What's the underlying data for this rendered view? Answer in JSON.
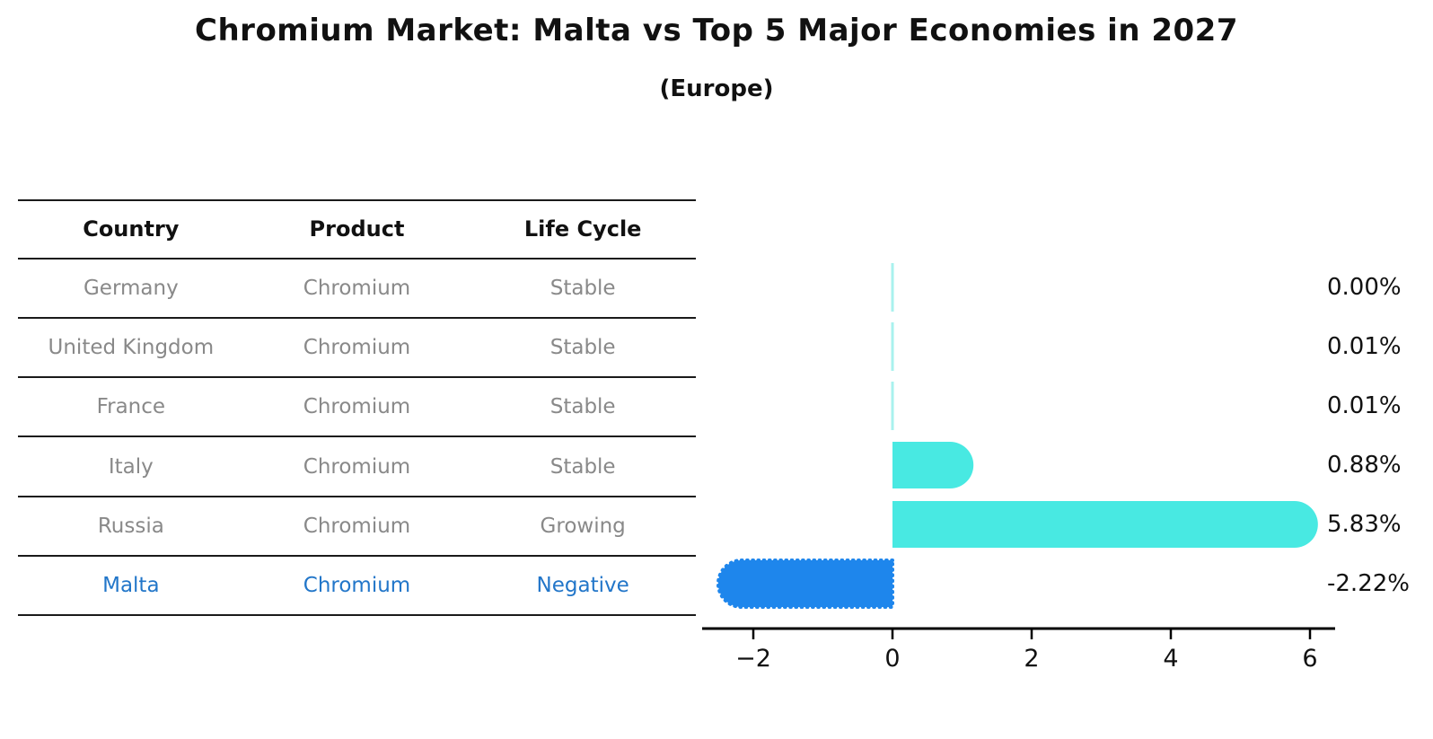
{
  "title": "Chromium Market: Malta vs Top 5 Major Economies in 2027",
  "subtitle": "(Europe)",
  "table": {
    "headers": [
      "Country",
      "Product",
      "Life Cycle"
    ],
    "rows": [
      {
        "country": "Germany",
        "product": "Chromium",
        "life_cycle": "Stable",
        "highlight": false
      },
      {
        "country": "United Kingdom",
        "product": "Chromium",
        "life_cycle": "Stable",
        "highlight": false
      },
      {
        "country": "France",
        "product": "Chromium",
        "life_cycle": "Stable",
        "highlight": false
      },
      {
        "country": "Italy",
        "product": "Chromium",
        "life_cycle": "Stable",
        "highlight": false
      },
      {
        "country": "Russia",
        "product": "Chromium",
        "life_cycle": "Growing",
        "highlight": false
      },
      {
        "country": "Malta",
        "product": "Chromium",
        "life_cycle": "Negative",
        "highlight": true
      }
    ]
  },
  "chart_data": {
    "type": "bar",
    "orientation": "horizontal",
    "categories": [
      "Germany",
      "United Kingdom",
      "France",
      "Italy",
      "Russia",
      "Malta"
    ],
    "values": [
      0.0,
      0.01,
      0.01,
      0.88,
      5.83,
      -2.22
    ],
    "value_labels": [
      "0.00%",
      "0.01%",
      "0.01%",
      "0.88%",
      "5.83%",
      "-2.22%"
    ],
    "x_ticks": [
      {
        "label": "−2",
        "value": -2
      },
      {
        "label": "0",
        "value": 0
      },
      {
        "label": "2",
        "value": 2
      },
      {
        "label": "4",
        "value": 4
      },
      {
        "label": "6",
        "value": 6
      }
    ],
    "xlim": [
      -2.75,
      6.4
    ],
    "grid": false,
    "legend": "none",
    "colors": {
      "positive_bar": "#48E9E2",
      "tiny_bar": "#A9F2EE",
      "negative_bar": "#1E86EC",
      "highlight_text": "#2276C9",
      "axis": "#000000"
    }
  }
}
